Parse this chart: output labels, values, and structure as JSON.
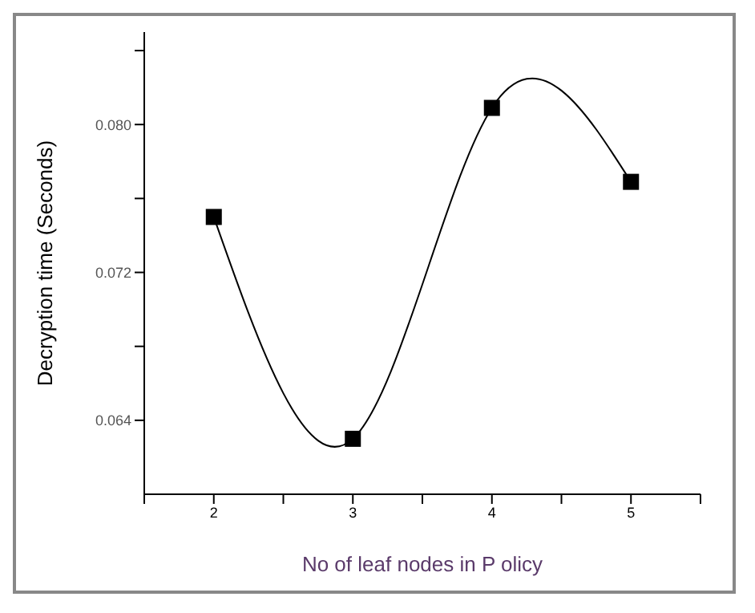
{
  "chart_data": {
    "type": "line",
    "xlabel": "No of leaf nodes in P olicy",
    "ylabel": "Decryption time (Seconds)",
    "x": [
      2,
      3,
      4,
      5
    ],
    "series": [
      {
        "color": "#000000",
        "values": [
          0.075,
          0.063,
          0.0809,
          0.0769
        ]
      }
    ],
    "xlim": [
      1.5,
      5.5
    ],
    "xticks": [
      {
        "value": 1.5,
        "label": null
      },
      2,
      {
        "value": 2.5,
        "label": null
      },
      3,
      {
        "value": 3.5,
        "label": null
      },
      4,
      {
        "value": 4.5,
        "label": null
      },
      5,
      {
        "value": 5.5,
        "label": null
      }
    ],
    "ylim": [
      0.06,
      0.085
    ],
    "yticks": [
      {
        "value": 0.064,
        "label": "0.064"
      },
      {
        "value": 0.068,
        "label": null
      },
      {
        "value": 0.072,
        "label": "0.072"
      },
      {
        "value": 0.076,
        "label": null
      },
      {
        "value": 0.08,
        "label": "0.080"
      },
      {
        "value": 0.084,
        "label": null
      }
    ],
    "marker": "square",
    "line_style": "solid"
  }
}
